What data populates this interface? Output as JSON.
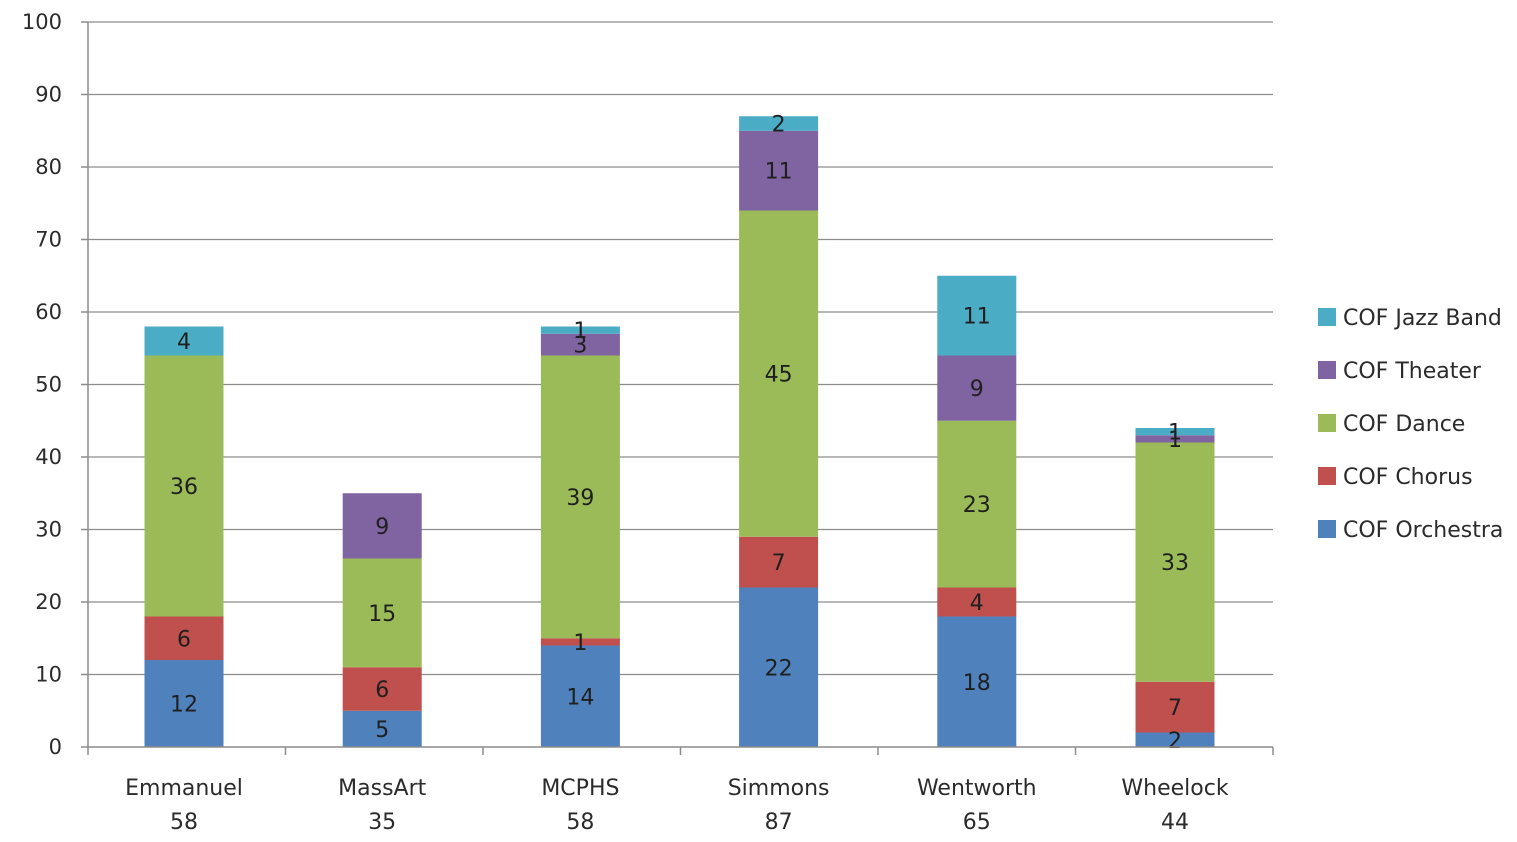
{
  "chart_data": {
    "type": "bar",
    "stacked": true,
    "title": "",
    "xlabel": "",
    "ylabel": "",
    "ylim": [
      0,
      100
    ],
    "yticks": [
      0,
      10,
      20,
      30,
      40,
      50,
      60,
      70,
      80,
      90,
      100
    ],
    "grid": true,
    "legend_position": "right",
    "categories": [
      "Emmanuel",
      "MassArt",
      "MCPHS",
      "Simmons",
      "Wentworth",
      "Wheelock"
    ],
    "category_totals": [
      "58",
      "35",
      "58",
      "87",
      "65",
      "44"
    ],
    "series": [
      {
        "name": "COF Orchestra",
        "color": "#4f81bd",
        "values": [
          12,
          5,
          14,
          22,
          18,
          2
        ]
      },
      {
        "name": "COF Chorus",
        "color": "#c0504d",
        "values": [
          6,
          6,
          1,
          7,
          4,
          7
        ]
      },
      {
        "name": "COF Dance",
        "color": "#9bbb59",
        "values": [
          36,
          15,
          39,
          45,
          23,
          33
        ]
      },
      {
        "name": "COF Theater",
        "color": "#8064a2",
        "values": [
          null,
          9,
          3,
          11,
          9,
          1
        ]
      },
      {
        "name": "COF Jazz Band",
        "color": "#4bacc6",
        "values": [
          4,
          null,
          1,
          2,
          11,
          1
        ]
      }
    ]
  }
}
